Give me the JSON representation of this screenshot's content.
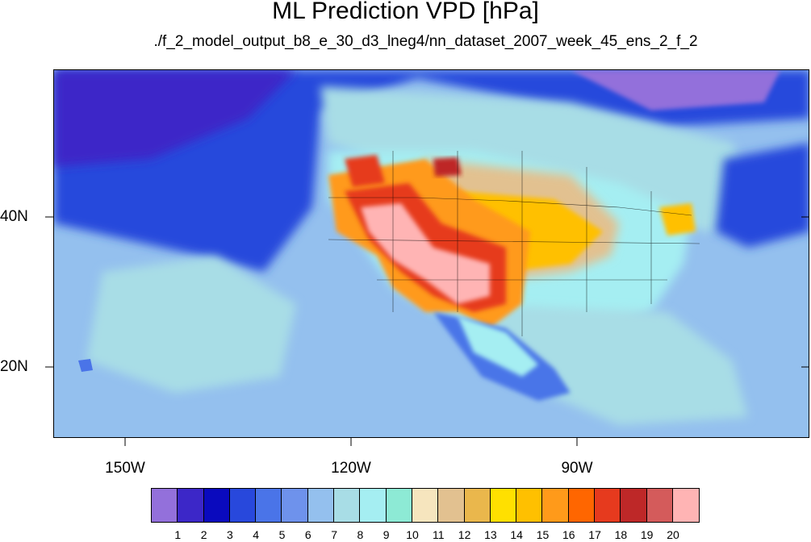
{
  "title": "ML Prediction VPD [hPa]",
  "subtitle": "./f_2_model_output_b8_e_30_d3_lneg4/nn_dataset_2007_week_45_ens_2_f_2",
  "axes": {
    "lat_labels": [
      "40N",
      "20N"
    ],
    "lon_labels": [
      "150W",
      "120W",
      "90W"
    ]
  },
  "colorbar": {
    "labels": [
      "1",
      "2",
      "3",
      "4",
      "5",
      "6",
      "7",
      "8",
      "9",
      "10",
      "11",
      "12",
      "13",
      "14",
      "15",
      "16",
      "17",
      "18",
      "19",
      "20"
    ],
    "colors": [
      "#9370DB",
      "#3C27C8",
      "#0A0ABE",
      "#2848DC",
      "#4A74E8",
      "#6E92EC",
      "#94C0EE",
      "#A8DDE6",
      "#A5EEF2",
      "#8DEAD5",
      "#F6E5BE",
      "#E2C190",
      "#EAB74C",
      "#FFE000",
      "#FFC000",
      "#FF9A1A",
      "#FF6600",
      "#E63A1E",
      "#BE2828",
      "#D45B5B",
      "#FFB4B4"
    ]
  }
}
